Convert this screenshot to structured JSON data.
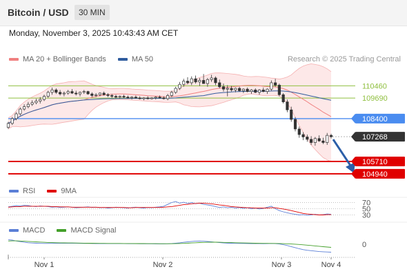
{
  "header": {
    "pair": "Bitcoin / USD",
    "timeframe": "30 MIN"
  },
  "datetime": "Monday, November 3, 2025 10:43:43 AM CET",
  "legend": {
    "items": [
      {
        "label": "MA 20 + Bollinger Bands",
        "color": "#f08080"
      },
      {
        "label": "MA 50",
        "color": "#2f5c9e"
      }
    ],
    "credit": "Research © 2025 Trading Central"
  },
  "rsi_legend": {
    "items": [
      {
        "label": "RSI",
        "color": "#5b7fd6"
      },
      {
        "label": "9MA",
        "color": "#e00000"
      }
    ]
  },
  "macd_legend": {
    "items": [
      {
        "label": "MACD",
        "color": "#5b7fd6"
      },
      {
        "label": "MACD Signal",
        "color": "#44a02a"
      }
    ]
  },
  "colors": {
    "resistance": "#8fbf3f",
    "pivot": "#4a8cf0",
    "support": "#e00000",
    "current": "#333333",
    "arrow": "#2b5ea8",
    "candle": "#333333",
    "band": "#fde4e4"
  },
  "chart_data": [
    {
      "type": "candlestick",
      "title": "Bitcoin / USD",
      "x_ticks": [
        "Nov 1",
        "Nov 2",
        "Nov 3",
        "Nov 4"
      ],
      "ylim": [
        104500,
        111600
      ],
      "levels": [
        {
          "kind": "resistance",
          "label": "110460",
          "value": 110460
        },
        {
          "kind": "resistance",
          "label": "109690",
          "value": 109690
        },
        {
          "kind": "pivot",
          "label": "108400",
          "value": 108400
        },
        {
          "kind": "current",
          "label": "107268",
          "value": 107268
        },
        {
          "kind": "support",
          "label": "105710",
          "value": 105710
        },
        {
          "kind": "support",
          "label": "104940",
          "value": 104940
        }
      ],
      "ohlc": [
        [
          107850,
          108200,
          107750,
          108100
        ],
        [
          108100,
          108500,
          108000,
          108400
        ],
        [
          108400,
          108800,
          108300,
          108700
        ],
        [
          108700,
          109100,
          108600,
          109000
        ],
        [
          109000,
          109300,
          108900,
          109150
        ],
        [
          109150,
          109450,
          109050,
          109300
        ],
        [
          109300,
          109550,
          109200,
          109400
        ],
        [
          109400,
          109650,
          109300,
          109500
        ],
        [
          109500,
          109750,
          109350,
          109600
        ],
        [
          109600,
          109900,
          109500,
          109800
        ],
        [
          109800,
          110150,
          109700,
          110050
        ],
        [
          110050,
          110350,
          109900,
          110200
        ],
        [
          110200,
          110300,
          109950,
          110050
        ],
        [
          110050,
          110200,
          109850,
          109950
        ],
        [
          109950,
          110100,
          109800,
          110000
        ],
        [
          110000,
          110200,
          109900,
          110100
        ],
        [
          110100,
          110250,
          109950,
          110000
        ],
        [
          110000,
          110150,
          109850,
          109950
        ],
        [
          109950,
          110100,
          109800,
          110050
        ],
        [
          110050,
          110200,
          109950,
          110100
        ],
        [
          110100,
          110150,
          109900,
          109950
        ],
        [
          109950,
          110050,
          109750,
          109850
        ],
        [
          109850,
          110000,
          109750,
          109900
        ],
        [
          109900,
          110050,
          109800,
          110000
        ],
        [
          110000,
          110100,
          109850,
          109900
        ],
        [
          109900,
          110000,
          109750,
          109850
        ],
        [
          109850,
          109950,
          109700,
          109800
        ],
        [
          109800,
          109900,
          109650,
          109750
        ],
        [
          109750,
          109850,
          109650,
          109800
        ],
        [
          109800,
          109900,
          109700,
          109750
        ],
        [
          109750,
          109850,
          109650,
          109700
        ],
        [
          109700,
          109800,
          109600,
          109750
        ],
        [
          109750,
          109850,
          109650,
          109700
        ],
        [
          109700,
          109800,
          109600,
          109650
        ],
        [
          109650,
          109750,
          109550,
          109700
        ],
        [
          109700,
          109800,
          109600,
          109650
        ],
        [
          109650,
          109750,
          109600,
          109700
        ],
        [
          109700,
          109800,
          109600,
          109750
        ],
        [
          109750,
          109850,
          109650,
          109700
        ],
        [
          109700,
          109800,
          109600,
          109650
        ],
        [
          109650,
          109950,
          109550,
          109850
        ],
        [
          109850,
          110150,
          109750,
          110050
        ],
        [
          110050,
          110400,
          109950,
          110300
        ],
        [
          110300,
          110700,
          110200,
          110550
        ],
        [
          110550,
          110900,
          110400,
          110750
        ],
        [
          110750,
          111000,
          110550,
          110650
        ],
        [
          110650,
          111050,
          110500,
          110900
        ],
        [
          110900,
          111100,
          110600,
          110700
        ],
        [
          110700,
          110950,
          110450,
          110800
        ],
        [
          110800,
          111200,
          110650,
          110600
        ],
        [
          110600,
          110950,
          110400,
          110850
        ],
        [
          110850,
          111150,
          110700,
          110950
        ],
        [
          110950,
          111050,
          110500,
          110650
        ],
        [
          110650,
          110850,
          110300,
          110400
        ],
        [
          110400,
          110600,
          110100,
          110250
        ],
        [
          110250,
          110500,
          109800,
          110300
        ],
        [
          110300,
          110450,
          110100,
          110200
        ],
        [
          110200,
          110350,
          110050,
          110300
        ],
        [
          110300,
          110400,
          110100,
          110150
        ],
        [
          110150,
          110300,
          110000,
          110250
        ],
        [
          110250,
          110350,
          110050,
          110100
        ],
        [
          110100,
          110250,
          109950,
          110200
        ],
        [
          110200,
          110300,
          110000,
          110050
        ],
        [
          110050,
          110250,
          109900,
          110200
        ],
        [
          110200,
          110350,
          110050,
          110100
        ],
        [
          110100,
          110300,
          109950,
          110250
        ],
        [
          110250,
          110800,
          110150,
          110650
        ],
        [
          110650,
          110900,
          110400,
          110500
        ],
        [
          110500,
          110600,
          109800,
          109900
        ],
        [
          109900,
          110000,
          109350,
          109450
        ],
        [
          109450,
          109600,
          108800,
          108950
        ],
        [
          108950,
          109150,
          108200,
          108350
        ],
        [
          108350,
          108500,
          107600,
          107750
        ],
        [
          107750,
          107900,
          107200,
          107400
        ],
        [
          107400,
          107550,
          107050,
          107250
        ],
        [
          107250,
          107400,
          106950,
          107100
        ],
        [
          107100,
          107300,
          106750,
          106900
        ],
        [
          106900,
          107250,
          106700,
          107150
        ],
        [
          107150,
          107350,
          106950,
          107000
        ],
        [
          107000,
          107200,
          106800,
          106900
        ],
        [
          106900,
          107500,
          106750,
          107350
        ],
        [
          107350,
          107450,
          107150,
          107268
        ]
      ]
    },
    {
      "type": "line",
      "title": "RSI",
      "y_ticks": [
        "70",
        "50",
        "30"
      ],
      "ylim": [
        20,
        80
      ],
      "series": [
        {
          "name": "RSI",
          "values": [
            56,
            58,
            60,
            59,
            61,
            60,
            58,
            57,
            59,
            58,
            57,
            55,
            56,
            54,
            55,
            56,
            55,
            53,
            54,
            55,
            56,
            54,
            55,
            53,
            54,
            52,
            53,
            55,
            54,
            53,
            52,
            54,
            55,
            53,
            52,
            54,
            53,
            55,
            56,
            58,
            64,
            70,
            73,
            68,
            71,
            67,
            70,
            66,
            68,
            64,
            62,
            60,
            57,
            54,
            56,
            53,
            55,
            52,
            54,
            51,
            53,
            50,
            52,
            49,
            51,
            55,
            58,
            50,
            44,
            40,
            37,
            34,
            32,
            30,
            31,
            29,
            30,
            32,
            30,
            31,
            33,
            32
          ]
        },
        {
          "name": "9MA",
          "values": [
            55,
            56,
            57,
            57,
            58,
            58,
            58,
            58,
            58,
            58,
            58,
            57,
            57,
            56,
            56,
            56,
            55,
            55,
            55,
            55,
            55,
            55,
            55,
            54,
            54,
            54,
            54,
            54,
            54,
            54,
            53,
            53,
            54,
            54,
            54,
            54,
            54,
            54,
            54,
            55,
            56,
            57,
            59,
            61,
            63,
            64,
            66,
            67,
            68,
            68,
            67,
            66,
            64,
            62,
            61,
            59,
            57,
            56,
            55,
            54,
            53,
            53,
            52,
            52,
            52,
            52,
            53,
            53,
            51,
            49,
            47,
            44,
            41,
            38,
            35,
            33,
            32,
            31,
            30,
            30,
            31,
            31
          ]
        }
      ]
    },
    {
      "type": "line",
      "title": "MACD",
      "y_ticks": [
        "0"
      ],
      "ylim": [
        -900,
        700
      ],
      "series": [
        {
          "name": "MACD",
          "values": [
            420,
            380,
            300,
            240,
            180,
            140,
            110,
            90,
            80,
            70,
            70,
            80,
            90,
            95,
            100,
            95,
            90,
            85,
            80,
            75,
            70,
            65,
            60,
            55,
            60,
            62,
            60,
            58,
            55,
            52,
            50,
            48,
            46,
            44,
            42,
            40,
            38,
            36,
            34,
            36,
            40,
            60,
            90,
            130,
            180,
            220,
            260,
            290,
            300,
            280,
            250,
            220,
            180,
            150,
            120,
            100,
            90,
            80,
            75,
            70,
            65,
            60,
            55,
            52,
            50,
            55,
            70,
            60,
            20,
            -40,
            -120,
            -220,
            -320,
            -420,
            -500,
            -560,
            -600,
            -640,
            -680,
            -700,
            -720,
            -740
          ]
        },
        {
          "name": "MACD Signal",
          "values": [
            300,
            310,
            310,
            300,
            280,
            260,
            240,
            220,
            200,
            180,
            160,
            150,
            140,
            130,
            125,
            120,
            115,
            110,
            105,
            100,
            95,
            90,
            85,
            80,
            78,
            76,
            74,
            72,
            70,
            68,
            66,
            64,
            62,
            60,
            58,
            56,
            54,
            52,
            50,
            49,
            48,
            50,
            55,
            65,
            80,
            95,
            115,
            135,
            155,
            170,
            180,
            185,
            185,
            180,
            170,
            160,
            150,
            140,
            130,
            120,
            110,
            102,
            95,
            88,
            82,
            78,
            76,
            72,
            65,
            55,
            40,
            20,
            0,
            -25,
            -55,
            -85,
            -120,
            -155,
            -190,
            -225,
            -260,
            -295
          ]
        }
      ]
    }
  ]
}
